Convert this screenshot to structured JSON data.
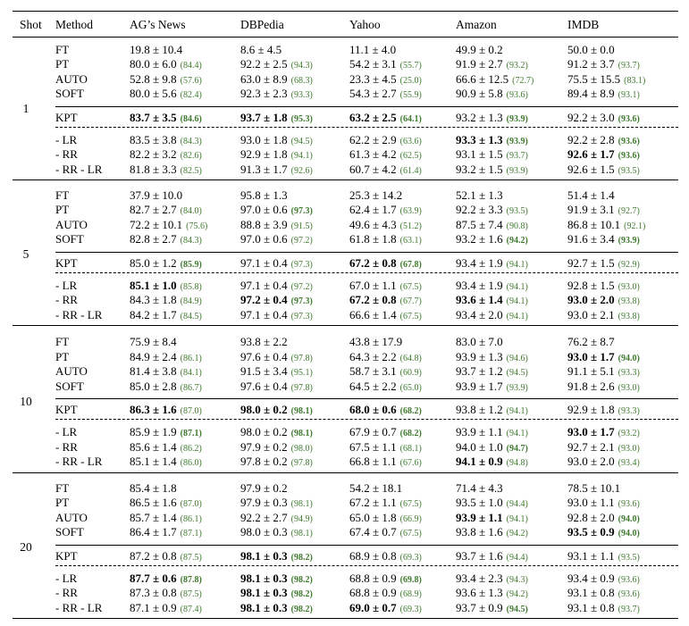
{
  "header": {
    "shot": "Shot",
    "method": "Method",
    "datasets": [
      "AG’s News",
      "DBPedia",
      "Yahoo",
      "Amazon",
      "IMDB"
    ]
  },
  "groups": [
    {
      "shot": "1",
      "rows": [
        {
          "method": "FT",
          "cells": [
            {
              "v": "19.8 ± 10.4",
              "s": ""
            },
            {
              "v": "8.6 ± 4.5",
              "s": ""
            },
            {
              "v": "11.1 ± 4.0",
              "s": ""
            },
            {
              "v": "49.9 ± 0.2",
              "s": ""
            },
            {
              "v": "50.0 ± 0.0",
              "s": ""
            }
          ]
        },
        {
          "method": "PT",
          "cells": [
            {
              "v": "80.0 ± 6.0",
              "s": "(84.4)"
            },
            {
              "v": "92.2 ± 2.5",
              "s": "(94.3)"
            },
            {
              "v": "54.2 ± 3.1",
              "s": "(55.7)"
            },
            {
              "v": "91.9 ± 2.7",
              "s": "(93.2)"
            },
            {
              "v": "91.2 ± 3.7",
              "s": "(93.7)"
            }
          ]
        },
        {
          "method": "AUTO",
          "cells": [
            {
              "v": "52.8 ± 9.8",
              "s": "(57.6)"
            },
            {
              "v": "63.0 ± 8.9",
              "s": "(68.3)"
            },
            {
              "v": "23.3 ± 4.5",
              "s": "(25.0)"
            },
            {
              "v": "66.6 ± 12.5",
              "s": "(72.7)"
            },
            {
              "v": "75.5 ± 15.5",
              "s": "(83.1)"
            }
          ]
        },
        {
          "method": "SOFT",
          "cells": [
            {
              "v": "80.0 ± 5.6",
              "s": "(82.4)"
            },
            {
              "v": "92.3 ± 2.3",
              "s": "(93.3)"
            },
            {
              "v": "54.3 ± 2.7",
              "s": "(55.9)"
            },
            {
              "v": "90.9 ± 5.8",
              "s": "(93.6)"
            },
            {
              "v": "89.4 ± 8.9",
              "s": "(93.1)"
            }
          ]
        },
        {
          "method": "KPT",
          "cells": [
            {
              "v": "83.7 ± 3.5",
              "s": "(84.6)",
              "b": true,
              "bs": true
            },
            {
              "v": "93.7 ± 1.8",
              "s": "(95.3)",
              "b": true,
              "bs": true
            },
            {
              "v": "63.2 ± 2.5",
              "s": "(64.1)",
              "b": true,
              "bs": true
            },
            {
              "v": "93.2 ± 1.3",
              "s": "(93.9)",
              "bs": true
            },
            {
              "v": "92.2 ± 3.0",
              "s": "(93.6)",
              "bs": true
            }
          ]
        },
        {
          "method": "- LR",
          "cells": [
            {
              "v": "83.5 ± 3.8",
              "s": "(84.3)"
            },
            {
              "v": "93.0 ± 1.8",
              "s": "(94.5)"
            },
            {
              "v": "62.2 ± 2.9",
              "s": "(63.6)"
            },
            {
              "v": "93.3 ± 1.3",
              "s": "(93.9)",
              "b": true,
              "bs": true
            },
            {
              "v": "92.2 ± 2.8",
              "s": "(93.6)",
              "bs": true
            }
          ]
        },
        {
          "method": "- RR",
          "cells": [
            {
              "v": "82.2 ± 3.2",
              "s": "(82.6)"
            },
            {
              "v": "92.9 ± 1.8",
              "s": "(94.1)"
            },
            {
              "v": "61.3 ± 4.2",
              "s": "(62.5)"
            },
            {
              "v": "93.1 ± 1.5",
              "s": "(93.7)"
            },
            {
              "v": "92.6 ± 1.7",
              "s": "(93.6)",
              "b": true,
              "bs": true
            }
          ]
        },
        {
          "method": "- RR - LR",
          "cells": [
            {
              "v": "81.8 ± 3.3",
              "s": "(82.5)"
            },
            {
              "v": "91.3 ± 1.7",
              "s": "(92.6)"
            },
            {
              "v": "60.7 ± 4.2",
              "s": "(61.4)"
            },
            {
              "v": "93.2 ± 1.5",
              "s": "(93.9)"
            },
            {
              "v": "92.6 ± 1.5",
              "s": "(93.5)"
            }
          ]
        }
      ]
    },
    {
      "shot": "5",
      "rows": [
        {
          "method": "FT",
          "cells": [
            {
              "v": "37.9 ± 10.0",
              "s": ""
            },
            {
              "v": "95.8 ± 1.3",
              "s": ""
            },
            {
              "v": "25.3 ± 14.2",
              "s": ""
            },
            {
              "v": "52.1 ± 1.3",
              "s": ""
            },
            {
              "v": "51.4 ± 1.4",
              "s": ""
            }
          ]
        },
        {
          "method": "PT",
          "cells": [
            {
              "v": "82.7 ± 2.7",
              "s": "(84.0)"
            },
            {
              "v": "97.0 ± 0.6",
              "s": "(97.3)",
              "bs": true
            },
            {
              "v": "62.4 ± 1.7",
              "s": "(63.9)"
            },
            {
              "v": "92.2 ± 3.3",
              "s": "(93.5)"
            },
            {
              "v": "91.9 ± 3.1",
              "s": "(92.7)"
            }
          ]
        },
        {
          "method": "AUTO",
          "cells": [
            {
              "v": "72.2 ± 10.1",
              "s": "(75.6)"
            },
            {
              "v": "88.8 ± 3.9",
              "s": "(91.5)"
            },
            {
              "v": "49.6 ± 4.3",
              "s": "(51.2)"
            },
            {
              "v": "87.5 ± 7.4",
              "s": "(90.8)"
            },
            {
              "v": "86.8 ± 10.1",
              "s": "(92.1)"
            }
          ]
        },
        {
          "method": "SOFT",
          "cells": [
            {
              "v": "82.8 ± 2.7",
              "s": "(84.3)"
            },
            {
              "v": "97.0 ± 0.6",
              "s": "(97.2)"
            },
            {
              "v": "61.8 ± 1.8",
              "s": "(63.1)"
            },
            {
              "v": "93.2 ± 1.6",
              "s": "(94.2)",
              "bs": true
            },
            {
              "v": "91.6 ± 3.4",
              "s": "(93.9)",
              "bs": true
            }
          ]
        },
        {
          "method": "KPT",
          "cells": [
            {
              "v": "85.0 ± 1.2",
              "s": "(85.9)",
              "bs": true
            },
            {
              "v": "97.1 ± 0.4",
              "s": "(97.3)"
            },
            {
              "v": "67.2 ± 0.8",
              "s": "(67.8)",
              "b": true,
              "bs": true
            },
            {
              "v": "93.4 ± 1.9",
              "s": "(94.1)"
            },
            {
              "v": "92.7 ± 1.5",
              "s": "(92.9)"
            }
          ]
        },
        {
          "method": "- LR",
          "cells": [
            {
              "v": "85.1 ± 1.0",
              "s": "(85.8)",
              "b": true
            },
            {
              "v": "97.1 ± 0.4",
              "s": "(97.2)"
            },
            {
              "v": "67.0 ± 1.1",
              "s": "(67.5)"
            },
            {
              "v": "93.4 ± 1.9",
              "s": "(94.1)"
            },
            {
              "v": "92.8 ± 1.5",
              "s": "(93.0)"
            }
          ]
        },
        {
          "method": "- RR",
          "cells": [
            {
              "v": "84.3 ± 1.8",
              "s": "(84.9)"
            },
            {
              "v": "97.2 ± 0.4",
              "s": "(97.3)",
              "b": true,
              "bs": true
            },
            {
              "v": "67.2 ± 0.8",
              "s": "(67.7)",
              "b": true
            },
            {
              "v": "93.6 ± 1.4",
              "s": "(94.1)",
              "b": true
            },
            {
              "v": "93.0 ± 2.0",
              "s": "(93.8)",
              "b": true
            }
          ]
        },
        {
          "method": "- RR - LR",
          "cells": [
            {
              "v": "84.2 ± 1.7",
              "s": "(84.5)"
            },
            {
              "v": "97.1 ± 0.4",
              "s": "(97.3)"
            },
            {
              "v": "66.6 ± 1.4",
              "s": "(67.5)"
            },
            {
              "v": "93.4 ± 2.0",
              "s": "(94.1)"
            },
            {
              "v": "93.0 ± 2.1",
              "s": "(93.8)"
            }
          ]
        }
      ]
    },
    {
      "shot": "10",
      "rows": [
        {
          "method": "FT",
          "cells": [
            {
              "v": "75.9 ± 8.4",
              "s": ""
            },
            {
              "v": "93.8 ± 2.2",
              "s": ""
            },
            {
              "v": "43.8 ± 17.9",
              "s": ""
            },
            {
              "v": "83.0 ± 7.0",
              "s": ""
            },
            {
              "v": "76.2 ± 8.7",
              "s": ""
            }
          ]
        },
        {
          "method": "PT",
          "cells": [
            {
              "v": "84.9 ± 2.4",
              "s": "(86.1)"
            },
            {
              "v": "97.6 ± 0.4",
              "s": "(97.8)"
            },
            {
              "v": "64.3 ± 2.2",
              "s": "(64.8)"
            },
            {
              "v": "93.9 ± 1.3",
              "s": "(94.6)"
            },
            {
              "v": "93.0 ± 1.7",
              "s": "(94.0)",
              "b": true,
              "bs": true
            }
          ]
        },
        {
          "method": "AUTO",
          "cells": [
            {
              "v": "81.4 ± 3.8",
              "s": "(84.1)"
            },
            {
              "v": "91.5 ± 3.4",
              "s": "(95.1)"
            },
            {
              "v": "58.7 ± 3.1",
              "s": "(60.9)"
            },
            {
              "v": "93.7 ± 1.2",
              "s": "(94.5)"
            },
            {
              "v": "91.1 ± 5.1",
              "s": "(93.3)"
            }
          ]
        },
        {
          "method": "SOFT",
          "cells": [
            {
              "v": "85.0 ± 2.8",
              "s": "(86.7)"
            },
            {
              "v": "97.6 ± 0.4",
              "s": "(97.8)"
            },
            {
              "v": "64.5 ± 2.2",
              "s": "(65.0)"
            },
            {
              "v": "93.9 ± 1.7",
              "s": "(93.9)"
            },
            {
              "v": "91.8 ± 2.6",
              "s": "(93.0)"
            }
          ]
        },
        {
          "method": "KPT",
          "cells": [
            {
              "v": "86.3 ± 1.6",
              "s": "(87.0)",
              "b": true
            },
            {
              "v": "98.0 ± 0.2",
              "s": "(98.1)",
              "b": true,
              "bs": true
            },
            {
              "v": "68.0 ± 0.6",
              "s": "(68.2)",
              "b": true,
              "bs": true
            },
            {
              "v": "93.8 ± 1.2",
              "s": "(94.1)"
            },
            {
              "v": "92.9 ± 1.8",
              "s": "(93.3)"
            }
          ]
        },
        {
          "method": "- LR",
          "cells": [
            {
              "v": "85.9 ± 1.9",
              "s": "(87.1)",
              "bs": true
            },
            {
              "v": "98.0 ± 0.2",
              "s": "(98.1)",
              "bs": true
            },
            {
              "v": "67.9 ± 0.7",
              "s": "(68.2)",
              "bs": true
            },
            {
              "v": "93.9 ± 1.1",
              "s": "(94.1)"
            },
            {
              "v": "93.0 ± 1.7",
              "s": "(93.2)",
              "b": true
            }
          ]
        },
        {
          "method": "- RR",
          "cells": [
            {
              "v": "85.6 ± 1.4",
              "s": "(86.2)"
            },
            {
              "v": "97.9 ± 0.2",
              "s": "(98.0)"
            },
            {
              "v": "67.5 ± 1.1",
              "s": "(68.1)"
            },
            {
              "v": "94.0 ± 1.0",
              "s": "(94.7)",
              "bs": true
            },
            {
              "v": "92.7 ± 2.1",
              "s": "(93.0)"
            }
          ]
        },
        {
          "method": "- RR - LR",
          "cells": [
            {
              "v": "85.1 ± 1.4",
              "s": "(86.0)"
            },
            {
              "v": "97.8 ± 0.2",
              "s": "(97.8)"
            },
            {
              "v": "66.8 ± 1.1",
              "s": "(67.6)"
            },
            {
              "v": "94.1 ± 0.9",
              "s": "(94.8)",
              "b": true
            },
            {
              "v": "93.0 ± 2.0",
              "s": "(93.4)"
            }
          ]
        }
      ]
    },
    {
      "shot": "20",
      "rows": [
        {
          "method": "FT",
          "cells": [
            {
              "v": "85.4 ± 1.8",
              "s": ""
            },
            {
              "v": "97.9 ± 0.2",
              "s": ""
            },
            {
              "v": "54.2 ± 18.1",
              "s": ""
            },
            {
              "v": "71.4 ± 4.3",
              "s": ""
            },
            {
              "v": "78.5 ± 10.1",
              "s": ""
            }
          ]
        },
        {
          "method": "PT",
          "cells": [
            {
              "v": "86.5 ± 1.6",
              "s": "(87.0)"
            },
            {
              "v": "97.9 ± 0.3",
              "s": "(98.1)"
            },
            {
              "v": "67.2 ± 1.1",
              "s": "(67.5)"
            },
            {
              "v": "93.5 ± 1.0",
              "s": "(94.4)"
            },
            {
              "v": "93.0 ± 1.1",
              "s": "(93.6)"
            }
          ]
        },
        {
          "method": "AUTO",
          "cells": [
            {
              "v": "85.7 ± 1.4",
              "s": "(86.1)"
            },
            {
              "v": "92.2 ± 2.7",
              "s": "(94.9)"
            },
            {
              "v": "65.0 ± 1.8",
              "s": "(66.9)"
            },
            {
              "v": "93.9 ± 1.1",
              "s": "(94.1)",
              "b": true
            },
            {
              "v": "92.8 ± 2.0",
              "s": "(94.0)",
              "bs": true
            }
          ]
        },
        {
          "method": "SOFT",
          "cells": [
            {
              "v": "86.4 ± 1.7",
              "s": "(87.1)"
            },
            {
              "v": "98.0 ± 0.3",
              "s": "(98.1)"
            },
            {
              "v": "67.4 ± 0.7",
              "s": "(67.5)"
            },
            {
              "v": "93.8 ± 1.6",
              "s": "(94.2)"
            },
            {
              "v": "93.5 ± 0.9",
              "s": "(94.0)",
              "b": true,
              "bs": true
            }
          ]
        },
        {
          "method": "KPT",
          "cells": [
            {
              "v": "87.2 ± 0.8",
              "s": "(87.5)"
            },
            {
              "v": "98.1 ± 0.3",
              "s": "(98.2)",
              "b": true,
              "bs": true
            },
            {
              "v": "68.9 ± 0.8",
              "s": "(69.3)"
            },
            {
              "v": "93.7 ± 1.6",
              "s": "(94.4)"
            },
            {
              "v": "93.1 ± 1.1",
              "s": "(93.5)"
            }
          ]
        },
        {
          "method": "- LR",
          "cells": [
            {
              "v": "87.7 ± 0.6",
              "s": "(87.8)",
              "b": true,
              "bs": true
            },
            {
              "v": "98.1 ± 0.3",
              "s": "(98.2)",
              "b": true,
              "bs": true
            },
            {
              "v": "68.8 ± 0.9",
              "s": "(69.8)",
              "bs": true
            },
            {
              "v": "93.4 ± 2.3",
              "s": "(94.3)"
            },
            {
              "v": "93.4 ± 0.9",
              "s": "(93.6)"
            }
          ]
        },
        {
          "method": "- RR",
          "cells": [
            {
              "v": "87.3 ± 0.8",
              "s": "(87.5)"
            },
            {
              "v": "98.1 ± 0.3",
              "s": "(98.2)",
              "b": true,
              "bs": true
            },
            {
              "v": "68.8 ± 0.9",
              "s": "(68.9)"
            },
            {
              "v": "93.6 ± 1.3",
              "s": "(94.2)"
            },
            {
              "v": "93.1 ± 0.8",
              "s": "(93.6)"
            }
          ]
        },
        {
          "method": "- RR - LR",
          "cells": [
            {
              "v": "87.1 ± 0.9",
              "s": "(87.4)"
            },
            {
              "v": "98.1 ± 0.3",
              "s": "(98.2)",
              "b": true,
              "bs": true
            },
            {
              "v": "69.0 ± 0.7",
              "s": "(69.3)",
              "b": true
            },
            {
              "v": "93.7 ± 0.9",
              "s": "(94.5)",
              "bs": true
            },
            {
              "v": "93.1 ± 0.8",
              "s": "(93.7)"
            }
          ]
        }
      ]
    }
  ]
}
